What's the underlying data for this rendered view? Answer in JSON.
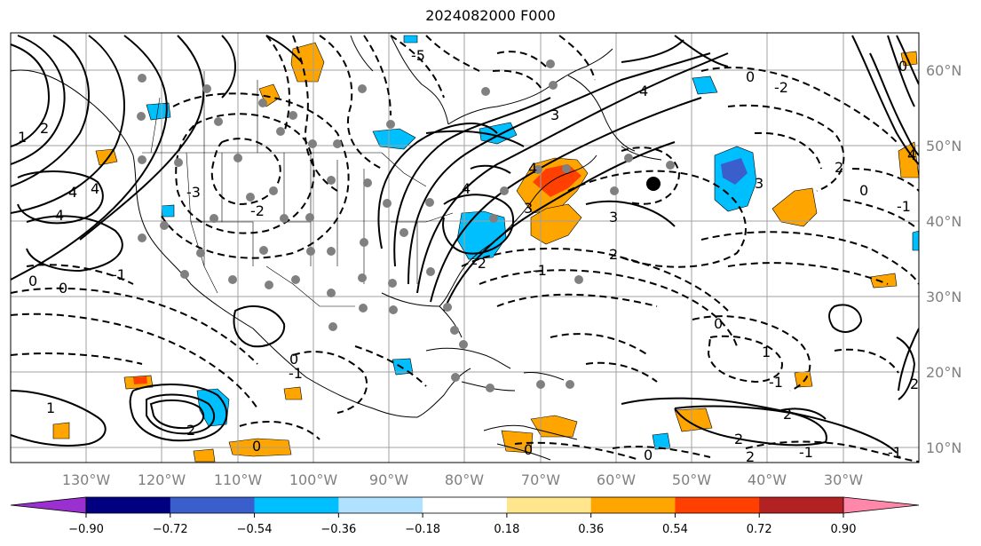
{
  "title": "2024082000 F000",
  "map": {
    "lon_labels": [
      "130°W",
      "120°W",
      "110°W",
      "100°W",
      "90°W",
      "80°W",
      "70°W",
      "60°W",
      "50°W",
      "40°W",
      "30°W"
    ],
    "lat_labels": [
      "60°N",
      "50°N",
      "40°N",
      "30°N",
      "20°N",
      "10°N"
    ],
    "grid_color": "#a0a0a0",
    "contour_labels": [
      "-5",
      "-3",
      "-2",
      "-1",
      "0",
      "1",
      "2",
      "3",
      "4",
      "2",
      "-1",
      "0",
      "-2",
      "3",
      "2",
      "-1",
      "1",
      "-2",
      "2",
      "-1",
      "0"
    ]
  },
  "colorbar": {
    "ticks": [
      "−0.90",
      "−0.72",
      "−0.54",
      "−0.36",
      "−0.18",
      "0.18",
      "0.36",
      "0.54",
      "0.72",
      "0.90"
    ],
    "colors": [
      "#9b30d0",
      "#000080",
      "#3a5fcd",
      "#00bfff",
      "#b0e2ff",
      "#ffffff",
      "#ffe68c",
      "#ffa500",
      "#ff4000",
      "#b22222",
      "#ff88aa"
    ],
    "under_color": "#9b30d0",
    "over_color": "#ff88aa"
  }
}
